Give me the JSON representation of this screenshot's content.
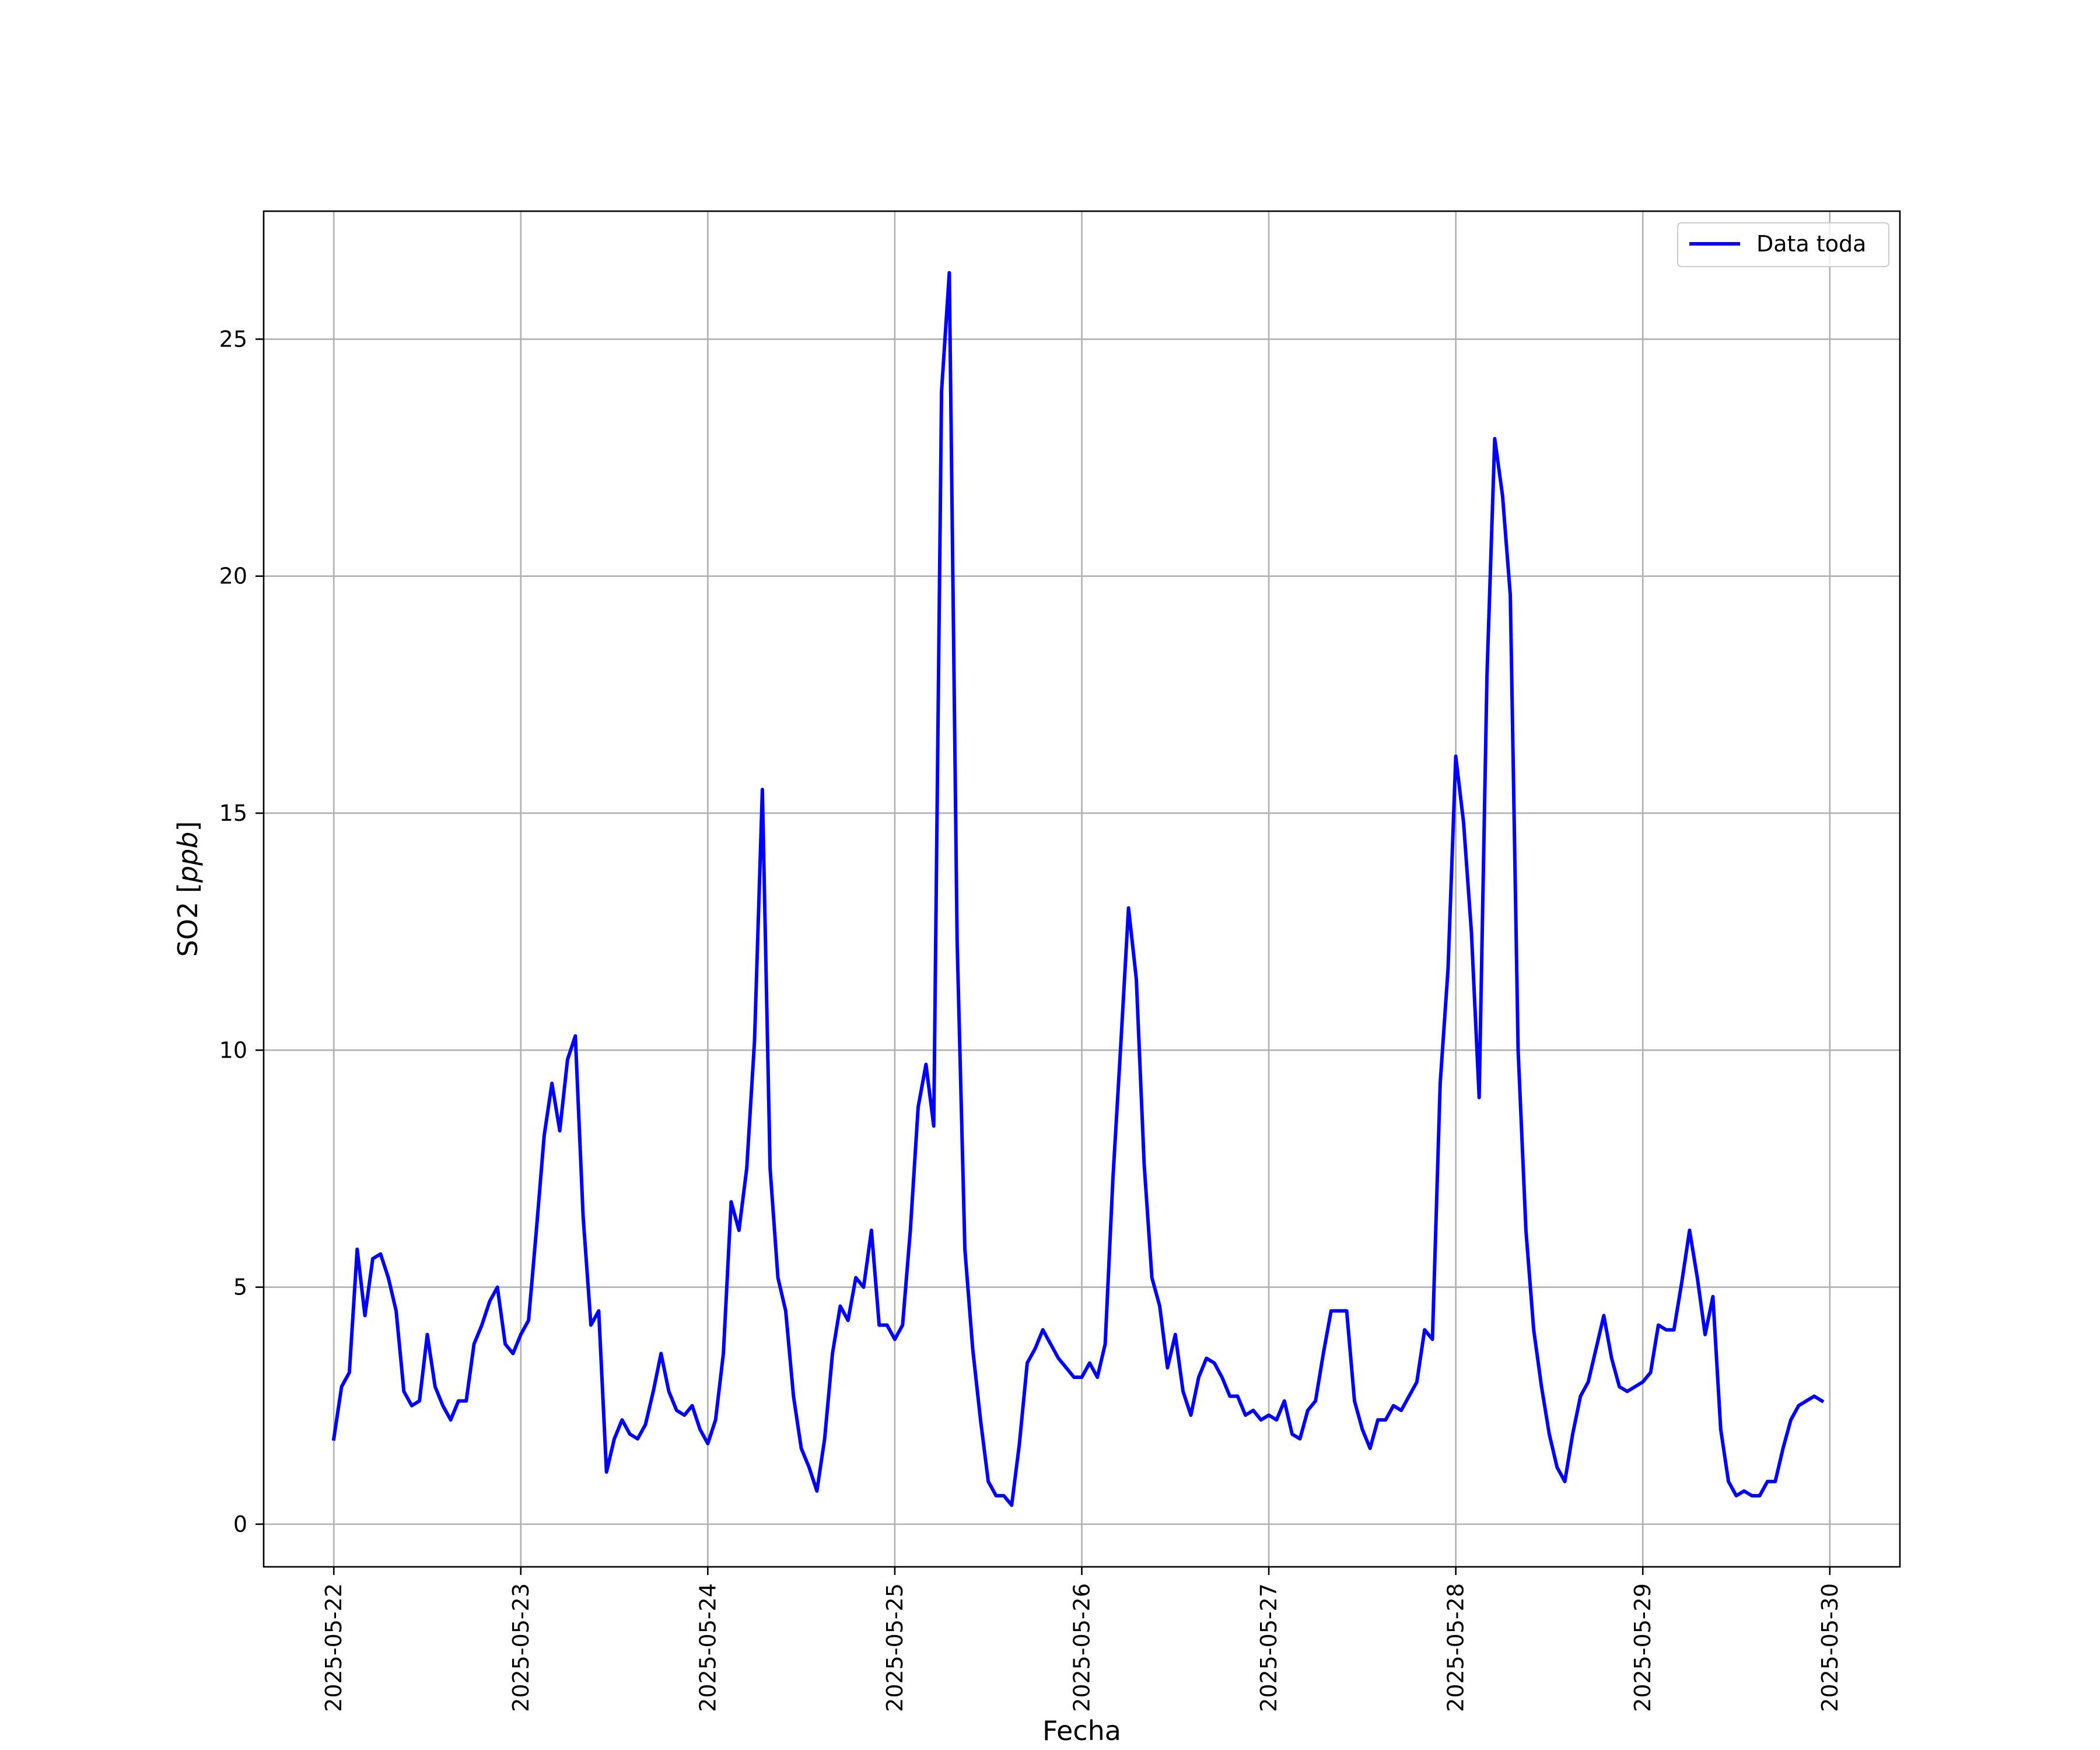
{
  "chart_data": {
    "type": "line",
    "title": "",
    "xlabel": "Fecha",
    "ylabel": "SO2 [ppb]",
    "ylabel_parts": {
      "plain": "SO2 [",
      "italic": "ppb",
      "close": "]"
    },
    "x_ticks": [
      "2025-05-22",
      "2025-05-23",
      "2025-05-24",
      "2025-05-25",
      "2025-05-26",
      "2025-05-27",
      "2025-05-28",
      "2025-05-29",
      "2025-05-30"
    ],
    "y_ticks": [
      0,
      5,
      10,
      15,
      20,
      25
    ],
    "xlim": [
      "2025-05-21T15:00",
      "2025-05-30T09:00"
    ],
    "ylim": [
      -0.9,
      27.7
    ],
    "grid": true,
    "legend_position": "top-right",
    "series": [
      {
        "name": "Data toda",
        "color": "#0000ff",
        "start": "2025-05-22T00:00",
        "interval_hours": 1,
        "y": [
          1.8,
          2.9,
          3.2,
          5.8,
          4.4,
          5.6,
          5.7,
          5.2,
          4.5,
          2.8,
          2.5,
          2.6,
          4.0,
          2.9,
          2.5,
          2.2,
          2.6,
          2.6,
          3.8,
          4.2,
          4.7,
          5.0,
          3.8,
          3.6,
          4.0,
          4.3,
          6.2,
          8.2,
          9.3,
          8.3,
          9.8,
          10.3,
          6.5,
          4.2,
          4.5,
          1.1,
          1.8,
          2.2,
          1.9,
          1.8,
          2.1,
          2.8,
          3.6,
          2.8,
          2.4,
          2.3,
          2.5,
          2.0,
          1.7,
          2.2,
          3.6,
          6.8,
          6.2,
          7.5,
          10.2,
          15.5,
          7.5,
          5.2,
          4.5,
          2.7,
          1.6,
          1.2,
          0.7,
          1.8,
          3.6,
          4.6,
          4.3,
          5.2,
          5.0,
          6.2,
          4.2,
          4.2,
          3.9,
          4.2,
          6.2,
          8.8,
          9.7,
          8.4,
          23.9,
          26.4,
          12.3,
          5.8,
          3.7,
          2.2,
          0.9,
          0.6,
          0.6,
          0.4,
          1.7,
          3.4,
          3.7,
          4.1,
          3.8,
          3.5,
          3.3,
          3.1,
          3.1,
          3.4,
          3.1,
          3.8,
          7.3,
          10.1,
          13.0,
          11.5,
          7.6,
          5.2,
          4.6,
          3.3,
          4.0,
          2.8,
          2.3,
          3.1,
          3.5,
          3.4,
          3.1,
          2.7,
          2.7,
          2.3,
          2.4,
          2.2,
          2.3,
          2.2,
          2.6,
          1.9,
          1.8,
          2.4,
          2.6,
          3.6,
          4.5,
          4.5,
          4.5,
          2.6,
          2.0,
          1.6,
          2.2,
          2.2,
          2.5,
          2.4,
          2.7,
          3.0,
          4.1,
          3.9,
          9.3,
          11.7,
          16.2,
          14.8,
          12.5,
          9.0,
          17.9,
          22.9,
          21.7,
          19.6,
          10.0,
          6.2,
          4.1,
          2.9,
          1.9,
          1.2,
          0.9,
          1.9,
          2.7,
          3.0,
          3.7,
          4.4,
          3.5,
          2.9,
          2.8,
          2.9,
          3.0,
          3.2,
          4.2,
          4.1,
          4.1,
          5.1,
          6.2,
          5.2,
          4.0,
          4.8,
          2.0,
          0.9,
          0.6,
          0.7,
          0.6,
          0.6,
          0.9,
          0.9,
          1.6,
          2.2,
          2.5,
          2.6,
          2.7,
          2.6
        ]
      }
    ]
  }
}
